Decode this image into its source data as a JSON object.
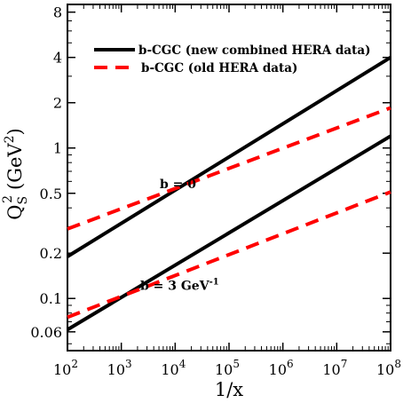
{
  "chart_data": {
    "type": "line",
    "xlabel": "1/x",
    "ylabel": "Q",
    "ylabel_sub": "S",
    "ylabel_sup": "2",
    "ylabel_unit_open": "(GeV",
    "ylabel_unit_sup": "2",
    "ylabel_unit_close": ")",
    "xscale": "log",
    "yscale": "log",
    "xlim": [
      100,
      100000000
    ],
    "ylim": [
      0.045,
      9
    ],
    "x_ticks": [
      {
        "value": 100,
        "base": "10",
        "exp": "2"
      },
      {
        "value": 1000,
        "base": "10",
        "exp": "3"
      },
      {
        "value": 10000,
        "base": "10",
        "exp": "4"
      },
      {
        "value": 100000,
        "base": "10",
        "exp": "5"
      },
      {
        "value": 1000000,
        "base": "10",
        "exp": "6"
      },
      {
        "value": 10000000,
        "base": "10",
        "exp": "7"
      },
      {
        "value": 100000000,
        "base": "10",
        "exp": "8"
      }
    ],
    "y_ticks": [
      {
        "value": 0.06,
        "label": "0.06"
      },
      {
        "value": 0.1,
        "label": "0.1"
      },
      {
        "value": 0.2,
        "label": "0.2"
      },
      {
        "value": 0.5,
        "label": "0.5"
      },
      {
        "value": 1,
        "label": "1"
      },
      {
        "value": 2,
        "label": "2"
      },
      {
        "value": 4,
        "label": "4"
      },
      {
        "value": 8,
        "label": "8"
      }
    ],
    "legend_position": "top-right",
    "series": [
      {
        "name": "b-CGC (new combined HERA data)",
        "style": "solid",
        "color": "#000000",
        "group": "b = 0",
        "x": [
          100,
          100000000
        ],
        "y": [
          0.19,
          4.0
        ]
      },
      {
        "name": "b-CGC (old HERA data)",
        "style": "dashed",
        "color": "#ff0000",
        "group": "b = 0",
        "x": [
          100,
          100000000
        ],
        "y": [
          0.29,
          1.85
        ]
      },
      {
        "name": "b-CGC (new combined HERA data)",
        "style": "solid",
        "color": "#000000",
        "group": "b = 3 GeV-1",
        "x": [
          100,
          100000000
        ],
        "y": [
          0.062,
          1.2
        ]
      },
      {
        "name": "b-CGC (old HERA data)",
        "style": "dashed",
        "color": "#ff0000",
        "group": "b = 3 GeV-1",
        "x": [
          100,
          100000000
        ],
        "y": [
          0.075,
          0.51
        ]
      }
    ],
    "legend": [
      {
        "label": "b-CGC (new combined HERA data)",
        "style": "solid",
        "color": "#000000"
      },
      {
        "label": "b-CGC (old HERA data)",
        "style": "dashed",
        "color": "#ff0000"
      }
    ],
    "annotations": [
      {
        "text": "b = 0",
        "x": 15000,
        "y": 0.5
      },
      {
        "text": "b = 3 GeV",
        "sup": "-1",
        "x": 6500,
        "y": 0.105
      }
    ]
  }
}
